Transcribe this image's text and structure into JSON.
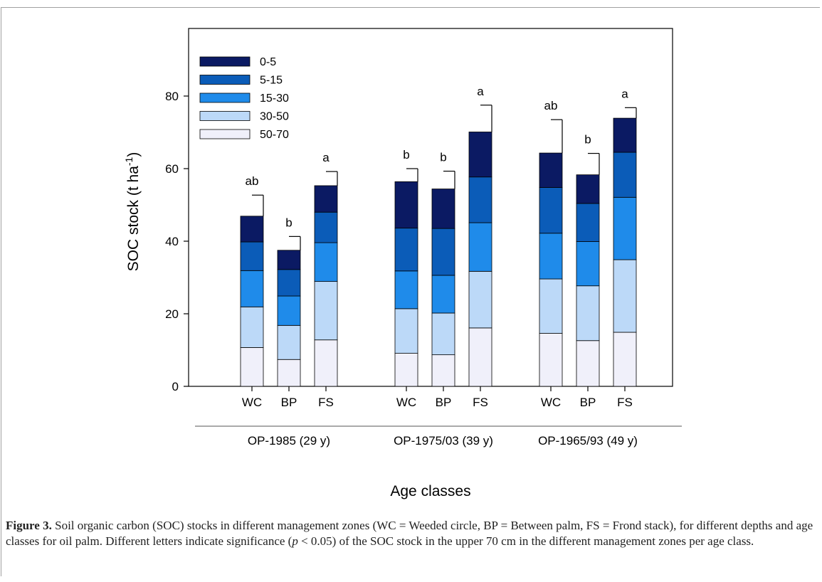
{
  "chart_data": {
    "type": "bar",
    "stacked": true,
    "ylabel": "SOC stock (t ha-1)",
    "ylabel_parts": {
      "main": "SOC stock (t ha",
      "sup": "-1",
      "end": ")"
    },
    "xlabel": "Age classes",
    "ylim": [
      0,
      80
    ],
    "yticks": [
      0,
      20,
      40,
      60,
      80
    ],
    "grid": false,
    "legend_position": "top-left",
    "groups": [
      {
        "label": "OP-1985 (29 y)",
        "bars": [
          {
            "category": "WC",
            "layers": [
              10.7,
              11.2,
              10.0,
              7.9,
              7.1
            ],
            "total": 46.9,
            "error": 5.8,
            "sig": "ab"
          },
          {
            "category": "BP",
            "layers": [
              7.4,
              9.4,
              8.1,
              7.3,
              5.3
            ],
            "total": 37.5,
            "error": 3.8,
            "sig": "b"
          },
          {
            "category": "FS",
            "layers": [
              12.8,
              16.1,
              10.7,
              8.4,
              7.3
            ],
            "total": 55.3,
            "error": 3.9,
            "sig": "a"
          }
        ]
      },
      {
        "label": "OP-1975/03 (39 y)",
        "bars": [
          {
            "category": "WC",
            "layers": [
              9.1,
              12.3,
              10.4,
              11.8,
              12.8
            ],
            "total": 56.4,
            "error": 3.6,
            "sig": "b"
          },
          {
            "category": "BP",
            "layers": [
              8.7,
              11.5,
              10.4,
              12.9,
              10.9
            ],
            "total": 54.4,
            "error": 4.9,
            "sig": "b"
          },
          {
            "category": "FS",
            "layers": [
              16.1,
              15.6,
              13.4,
              12.6,
              12.4
            ],
            "total": 70.1,
            "error": 7.4,
            "sig": "a"
          }
        ]
      },
      {
        "label": "OP-1965/93 (49 y)",
        "bars": [
          {
            "category": "WC",
            "layers": [
              14.6,
              15.0,
              12.6,
              12.6,
              9.5
            ],
            "total": 64.3,
            "error": 9.2,
            "sig": "ab"
          },
          {
            "category": "BP",
            "layers": [
              12.6,
              15.1,
              12.2,
              10.5,
              7.9
            ],
            "total": 58.3,
            "error": 5.9,
            "sig": "b"
          },
          {
            "category": "FS",
            "layers": [
              14.9,
              20.0,
              17.2,
              12.4,
              9.4
            ],
            "total": 73.9,
            "error": 2.9,
            "sig": "a"
          }
        ]
      }
    ],
    "series": [
      {
        "name": "50-70",
        "color": "#f0f0fa"
      },
      {
        "name": "30-50",
        "color": "#bcd9f8"
      },
      {
        "name": "15-30",
        "color": "#1f8bea"
      },
      {
        "name": "5-15",
        "color": "#0b5cb8"
      },
      {
        "name": "0-5",
        "color": "#0b1a63"
      }
    ],
    "legend_order": [
      "0-5",
      "5-15",
      "15-30",
      "30-50",
      "50-70"
    ]
  },
  "caption": {
    "label": "Figure 3.",
    "text_before_p": " Soil organic carbon (SOC) stocks in different management zones (WC = Weeded circle, BP = Between palm, FS = Frond stack), for different depths and age classes for oil palm. Different letters indicate significance (",
    "p_symbol": "p",
    "text_after_p": " < 0.05) of the SOC stock in the upper 70 cm in the different management zones per age class."
  }
}
